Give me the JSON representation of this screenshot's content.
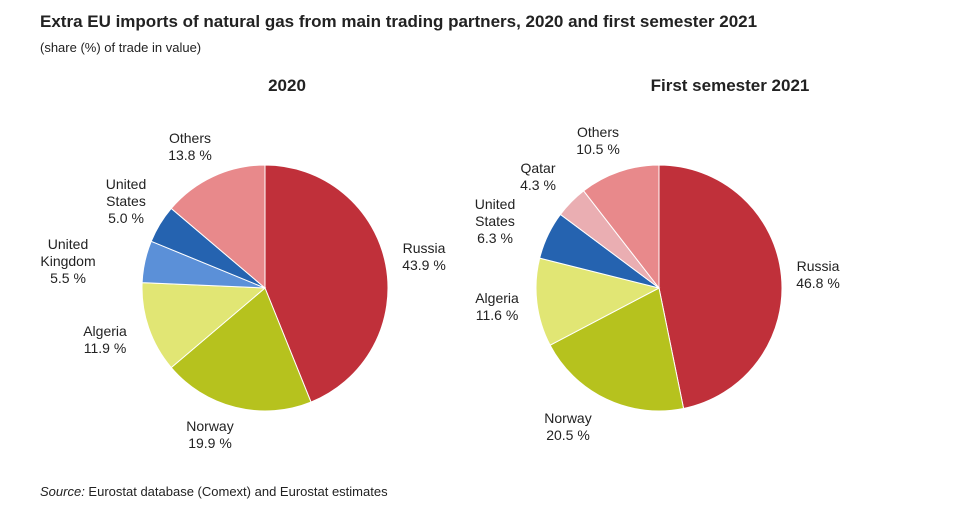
{
  "chart_data": [
    {
      "type": "pie",
      "title": "2020",
      "start": "top, clockwise",
      "categories": [
        "Russia",
        "Norway",
        "Algeria",
        "United Kingdom",
        "United States",
        "Others"
      ],
      "values": [
        43.9,
        19.9,
        11.9,
        5.5,
        5.0,
        13.8
      ],
      "labels": [
        "Russia\n43.9 %",
        "Norway\n19.9 %",
        "Algeria\n11.9 %",
        "United\nKingdom\n5.5 %",
        "United\nStates\n5.0 %",
        "Others\n13.8 %"
      ],
      "colors": [
        "#c0303a",
        "#b6c21e",
        "#e1e674",
        "#5b90d8",
        "#2563b0",
        "#e8898b"
      ]
    },
    {
      "type": "pie",
      "title": "First semester 2021",
      "start": "top, clockwise",
      "categories": [
        "Russia",
        "Norway",
        "Algeria",
        "United States",
        "Qatar",
        "Others"
      ],
      "values": [
        46.8,
        20.5,
        11.6,
        6.3,
        4.3,
        10.5
      ],
      "labels": [
        "Russia\n46.8 %",
        "Norway\n20.5 %",
        "Algeria\n11.6 %",
        "United\nStates\n6.3 %",
        "Qatar\n4.3 %",
        "Others\n10.5 %"
      ],
      "colors": [
        "#c0303a",
        "#b6c21e",
        "#e1e674",
        "#2563b0",
        "#eaaeb2",
        "#e8898b"
      ]
    }
  ],
  "header": {
    "title": "Extra EU imports of natural gas from main trading partners, 2020 and first semester 2021",
    "subtitle": "(share (%) of trade in value)"
  },
  "footer": {
    "source_label": "Source:",
    "source_text": " Eurostat database (Comext) and Eurostat estimates"
  }
}
